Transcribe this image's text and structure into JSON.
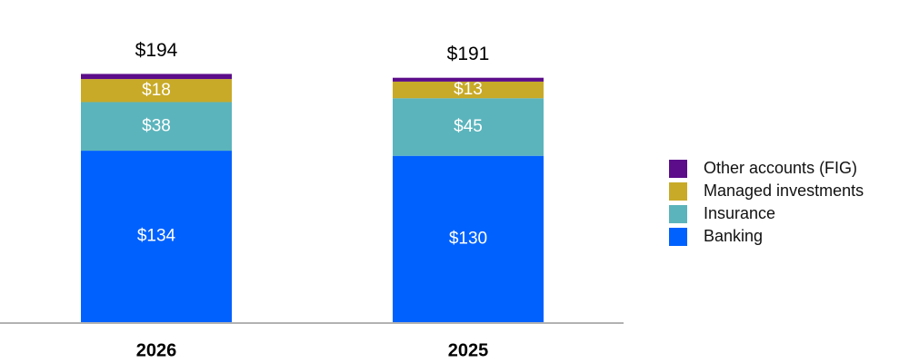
{
  "chart_data": {
    "type": "stacked-bar",
    "categories": [
      "2026",
      "2025"
    ],
    "series": [
      {
        "name": "Banking",
        "color": "#0061fe",
        "values": [
          134,
          130
        ],
        "value_labels": [
          "$134",
          "$130"
        ]
      },
      {
        "name": "Insurance",
        "color": "#5bb4bc",
        "values": [
          38,
          45
        ],
        "value_labels": [
          "$38",
          "$45"
        ]
      },
      {
        "name": "Managed investments",
        "color": "#c8aa28",
        "values": [
          18,
          13
        ],
        "value_labels": [
          "$18",
          "$13"
        ]
      },
      {
        "name": "Other accounts (FIG)",
        "color": "#5c0d8a",
        "values": [
          4,
          3
        ],
        "value_labels": [
          null,
          null
        ]
      }
    ],
    "totals": [
      194,
      191
    ],
    "total_labels": [
      "$194",
      "$191"
    ]
  }
}
